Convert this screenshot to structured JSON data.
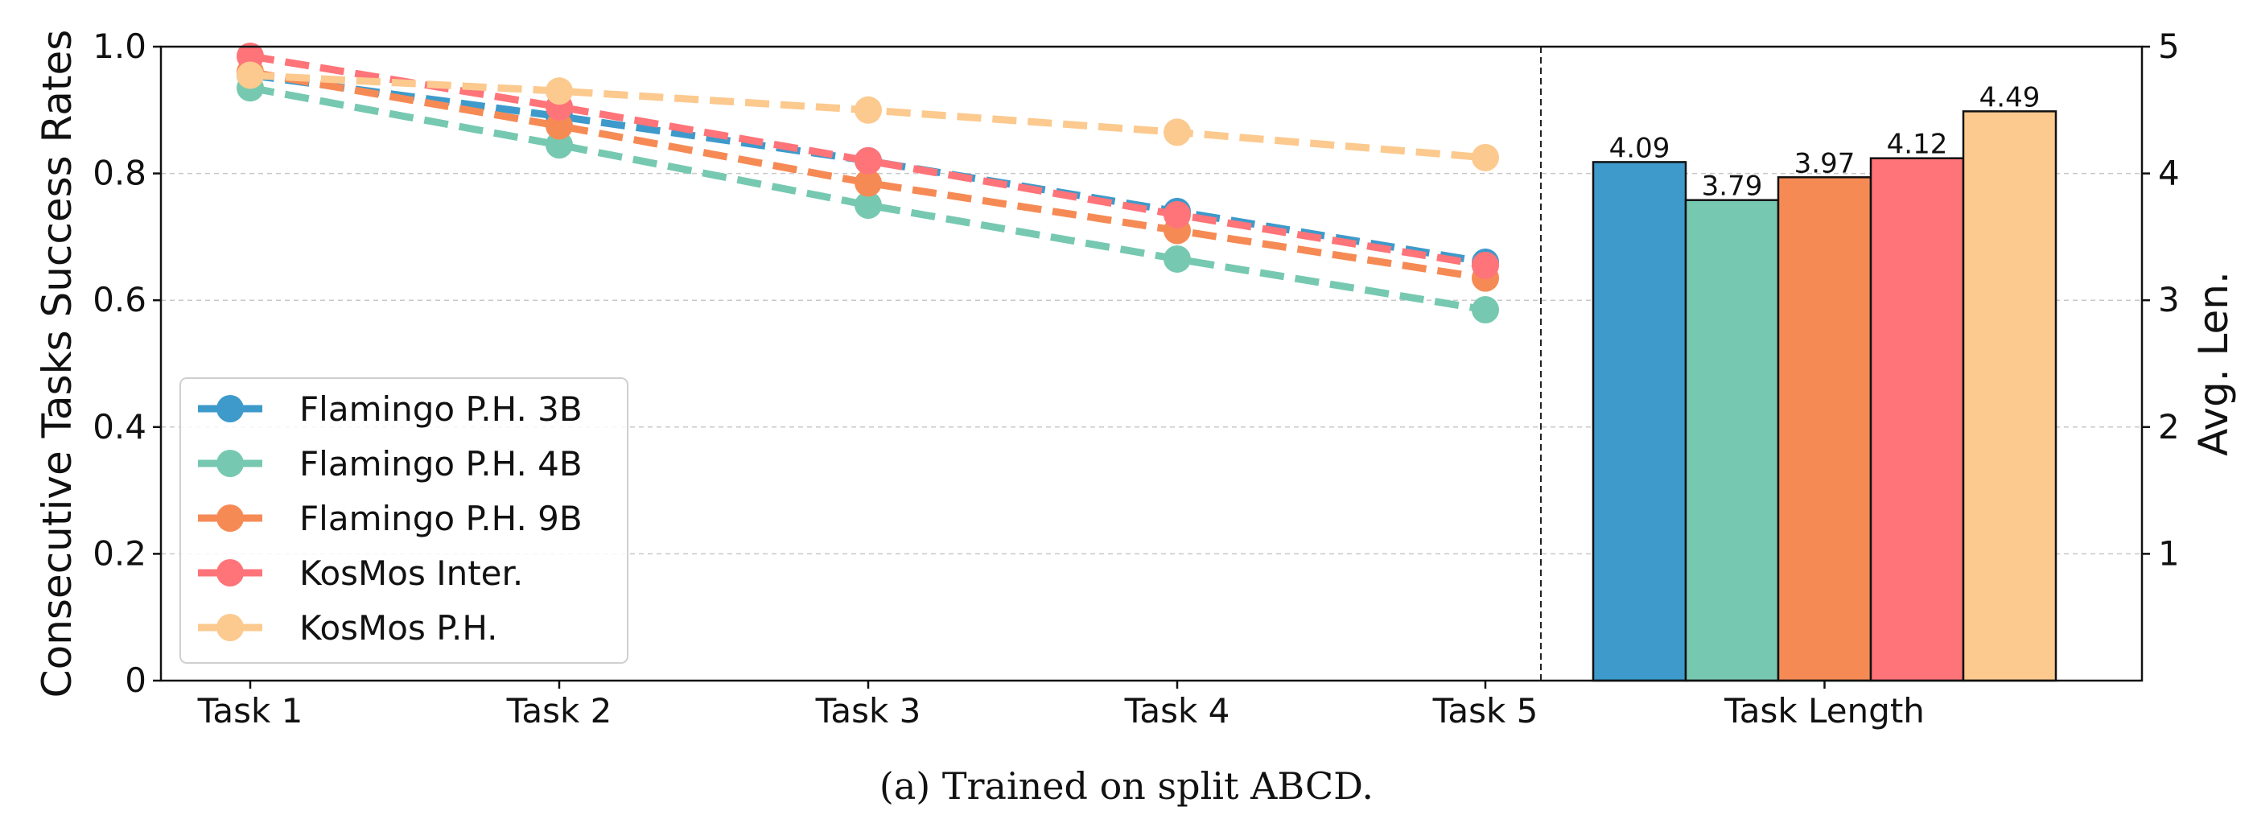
{
  "chart_data": {
    "type": "line+bar",
    "caption": "(a) Trained on split ABCD.",
    "left_panel": {
      "type": "line",
      "categories": [
        "Task 1",
        "Task 2",
        "Task 3",
        "Task 4",
        "Task 5"
      ],
      "ylabel": "Consecutive Tasks Success Rates",
      "ylim": [
        0,
        1.0
      ],
      "yticks": [
        "0",
        "0.2",
        "0.4",
        "0.6",
        "0.8",
        "1.0"
      ],
      "grid": true,
      "line_style": "dashed",
      "series": [
        {
          "name": "Flamingo P.H. 3B",
          "color": "#3d9acb",
          "values": [
            0.955,
            0.89,
            0.82,
            0.74,
            0.66
          ]
        },
        {
          "name": "Flamingo P.H. 4B",
          "color": "#76c9b0",
          "values": [
            0.935,
            0.845,
            0.75,
            0.665,
            0.585
          ]
        },
        {
          "name": "Flamingo P.H. 9B",
          "color": "#f68a55",
          "values": [
            0.96,
            0.875,
            0.785,
            0.71,
            0.635
          ]
        },
        {
          "name": "KosMos Inter.",
          "color": "#fe7479",
          "values": [
            0.985,
            0.905,
            0.82,
            0.735,
            0.655
          ]
        },
        {
          "name": "KosMos P.H.",
          "color": "#fcc98e",
          "values": [
            0.955,
            0.93,
            0.9,
            0.865,
            0.825
          ]
        }
      ],
      "legend_position": "lower-left"
    },
    "right_panel": {
      "type": "bar",
      "xlabel": "Task Length",
      "ylabel": "Avg. Len.",
      "ylim": [
        0,
        5
      ],
      "yticks": [
        "1",
        "2",
        "3",
        "4",
        "5"
      ],
      "bars": [
        {
          "series": "Flamingo P.H. 3B",
          "value": 4.09,
          "label": "4.09",
          "color": "#3d9acb"
        },
        {
          "series": "Flamingo P.H. 4B",
          "value": 3.79,
          "label": "3.79",
          "color": "#76c9b0"
        },
        {
          "series": "Flamingo P.H. 9B",
          "value": 3.97,
          "label": "3.97",
          "color": "#f68a55"
        },
        {
          "series": "KosMos Inter.",
          "value": 4.12,
          "label": "4.12",
          "color": "#fe7479"
        },
        {
          "series": "KosMos P.H.",
          "value": 4.49,
          "label": "4.49",
          "color": "#fcc98e"
        }
      ]
    }
  }
}
